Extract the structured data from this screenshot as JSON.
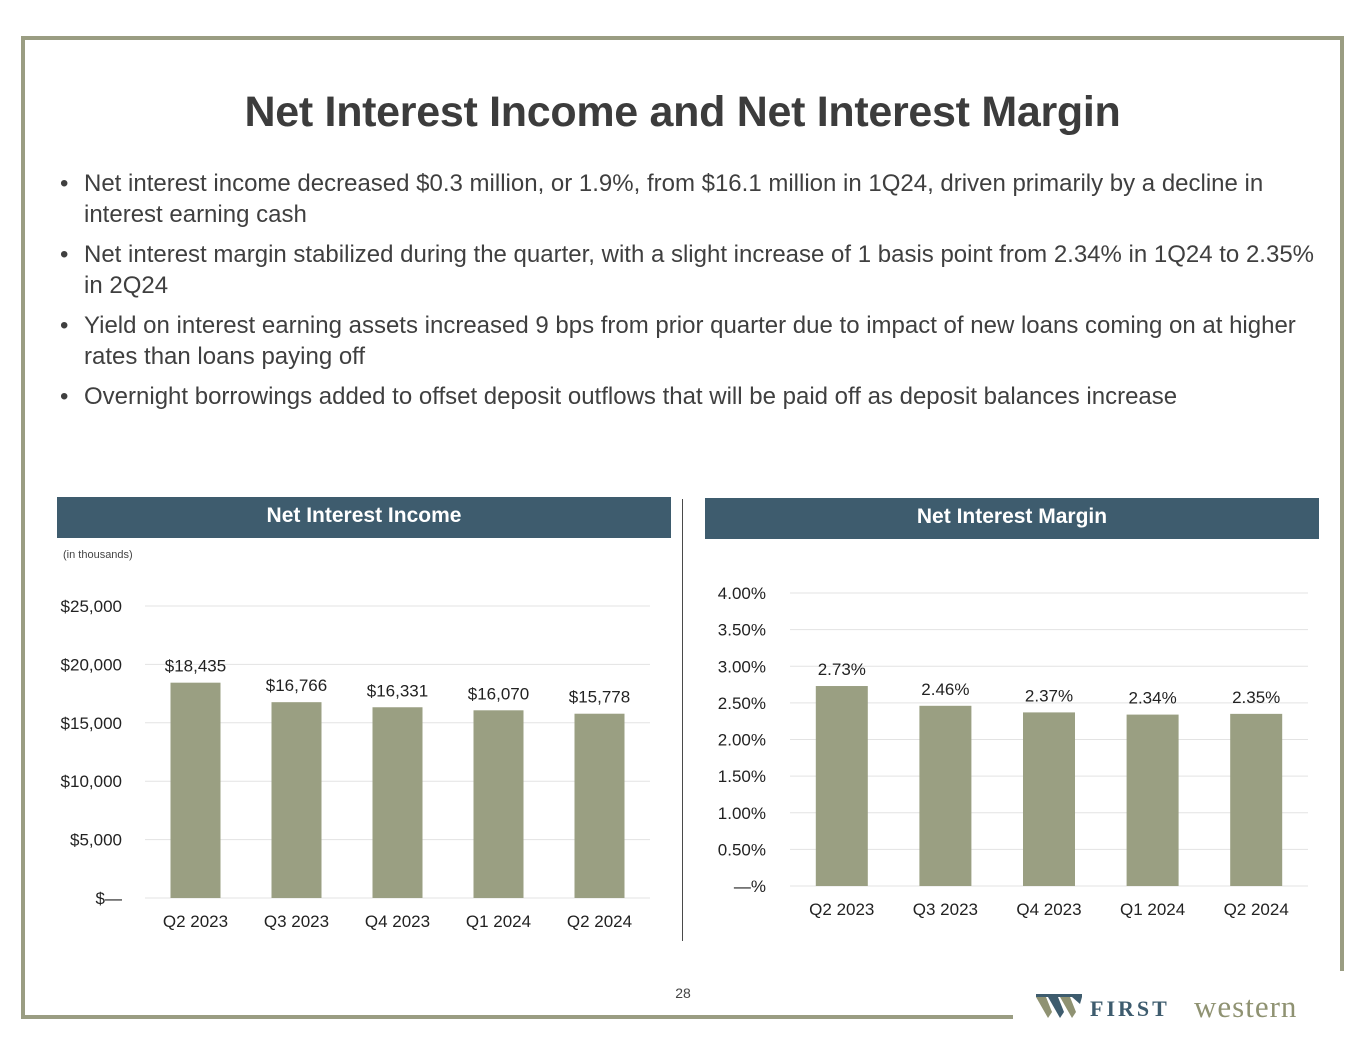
{
  "slide": {
    "title": "Net Interest Income and Net Interest Margin",
    "bullets": [
      "Net interest income decreased $0.3 million, or 1.9%, from $16.1 million in 1Q24, driven primarily by a decline in interest earning cash",
      "Net interest margin stabilized during the quarter, with a slight increase of 1 basis point from 2.34% in 1Q24 to 2.35% in 2Q24",
      "Yield on interest earning assets increased 9 bps from prior quarter due to impact of new loans coming on at higher rates than loans paying off",
      "Overnight borrowings added to offset deposit outflows that will be paid off as deposit balances increase"
    ],
    "page_number": "28"
  },
  "logo": {
    "first": "FIRST",
    "western": "western"
  },
  "colors": {
    "frame": "#9a9d82",
    "header": "#3e5c6e",
    "bar": "#9a9f82",
    "grid": "#e3e3e3"
  },
  "chart_data": [
    {
      "type": "bar",
      "title": "Net Interest Income",
      "note": "(in thousands)",
      "categories": [
        "Q2 2023",
        "Q3 2023",
        "Q4 2023",
        "Q1 2024",
        "Q2 2024"
      ],
      "values": [
        18435,
        16766,
        16331,
        16070,
        15778
      ],
      "value_labels": [
        "$18,435",
        "$16,766",
        "$16,331",
        "$16,070",
        "$15,778"
      ],
      "ylim": [
        0,
        25000
      ],
      "yticks": [
        0,
        5000,
        10000,
        15000,
        20000,
        25000
      ],
      "ytick_labels": [
        "$—",
        "$5,000",
        "$10,000",
        "$15,000",
        "$20,000",
        "$25,000"
      ],
      "grid": true
    },
    {
      "type": "bar",
      "title": "Net Interest Margin",
      "categories": [
        "Q2 2023",
        "Q3 2023",
        "Q4 2023",
        "Q1 2024",
        "Q2 2024"
      ],
      "values": [
        2.73,
        2.46,
        2.37,
        2.34,
        2.35
      ],
      "value_labels": [
        "2.73%",
        "2.46%",
        "2.37%",
        "2.34%",
        "2.35%"
      ],
      "ylim": [
        0,
        4.0
      ],
      "yticks": [
        0,
        0.5,
        1.0,
        1.5,
        2.0,
        2.5,
        3.0,
        3.5,
        4.0
      ],
      "ytick_labels": [
        "—%",
        "0.50%",
        "1.00%",
        "1.50%",
        "2.00%",
        "2.50%",
        "3.00%",
        "3.50%",
        "4.00%"
      ],
      "grid": true
    }
  ]
}
